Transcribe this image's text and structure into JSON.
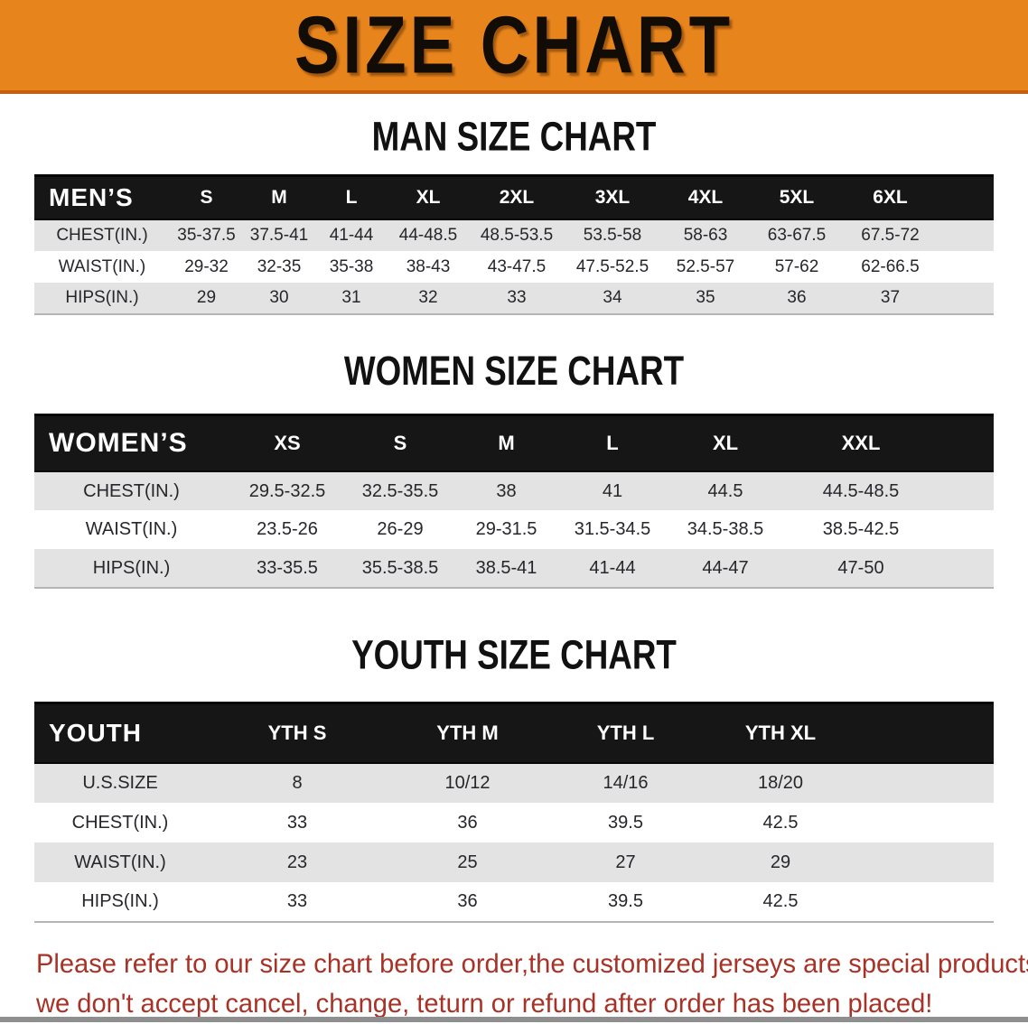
{
  "banner": {
    "title": "SIZE CHART"
  },
  "sections": [
    {
      "title": "MAN SIZE CHART",
      "corner_label": "MEN’S",
      "columns": [
        "S",
        "M",
        "L",
        "XL",
        "2XL",
        "3XL",
        "4XL",
        "5XL",
        "6XL"
      ],
      "rows": [
        {
          "label": "CHEST(IN.)",
          "values": [
            "35-37.5",
            "37.5-41",
            "41-44",
            "44-48.5",
            "48.5-53.5",
            "53.5-58",
            "58-63",
            "63-67.5",
            "67.5-72"
          ]
        },
        {
          "label": "WAIST(IN.)",
          "values": [
            "29-32",
            "32-35",
            "35-38",
            "38-43",
            "43-47.5",
            "47.5-52.5",
            "52.5-57",
            "57-62",
            "62-66.5"
          ]
        },
        {
          "label": "HIPS(IN.)",
          "values": [
            "29",
            "30",
            "31",
            "32",
            "33",
            "34",
            "35",
            "36",
            "37"
          ]
        }
      ]
    },
    {
      "title": "WOMEN SIZE CHART",
      "corner_label": "WOMEN’S",
      "columns": [
        "XS",
        "S",
        "M",
        "L",
        "XL",
        "XXL"
      ],
      "rows": [
        {
          "label": "CHEST(IN.)",
          "values": [
            "29.5-32.5",
            "32.5-35.5",
            "38",
            "41",
            "44.5",
            "44.5-48.5"
          ]
        },
        {
          "label": "WAIST(IN.)",
          "values": [
            "23.5-26",
            "26-29",
            "29-31.5",
            "31.5-34.5",
            "34.5-38.5",
            "38.5-42.5"
          ]
        },
        {
          "label": "HIPS(IN.)",
          "values": [
            "33-35.5",
            "35.5-38.5",
            "38.5-41",
            "41-44",
            "44-47",
            "47-50"
          ]
        }
      ]
    },
    {
      "title": "YOUTH SIZE CHART",
      "corner_label": "YOUTH",
      "columns": [
        "YTH S",
        "YTH M",
        "YTH L",
        "YTH XL"
      ],
      "rows": [
        {
          "label": "U.S.SIZE",
          "values": [
            "8",
            "10/12",
            "14/16",
            "18/20"
          ]
        },
        {
          "label": "CHEST(IN.)",
          "values": [
            "33",
            "36",
            "39.5",
            "42.5"
          ]
        },
        {
          "label": "WAIST(IN.)",
          "values": [
            "23",
            "25",
            "27",
            "29"
          ]
        },
        {
          "label": "HIPS(IN.)",
          "values": [
            "33",
            "36",
            "39.5",
            "42.5"
          ]
        }
      ]
    }
  ],
  "disclaimer": {
    "line1": "Please refer to our size chart before order,the customized jerseys are special products,",
    "line2": "we don't accept cancel, change, teturn or refund after order has been placed!"
  },
  "colors": {
    "banner_bg": "#E8841C",
    "banner_edge": "#C4600E",
    "band_bg": "#161616",
    "stripe_gray": "#E3E3E3",
    "text_dark": "#26262B",
    "disclaimer_red": "#A93226"
  }
}
